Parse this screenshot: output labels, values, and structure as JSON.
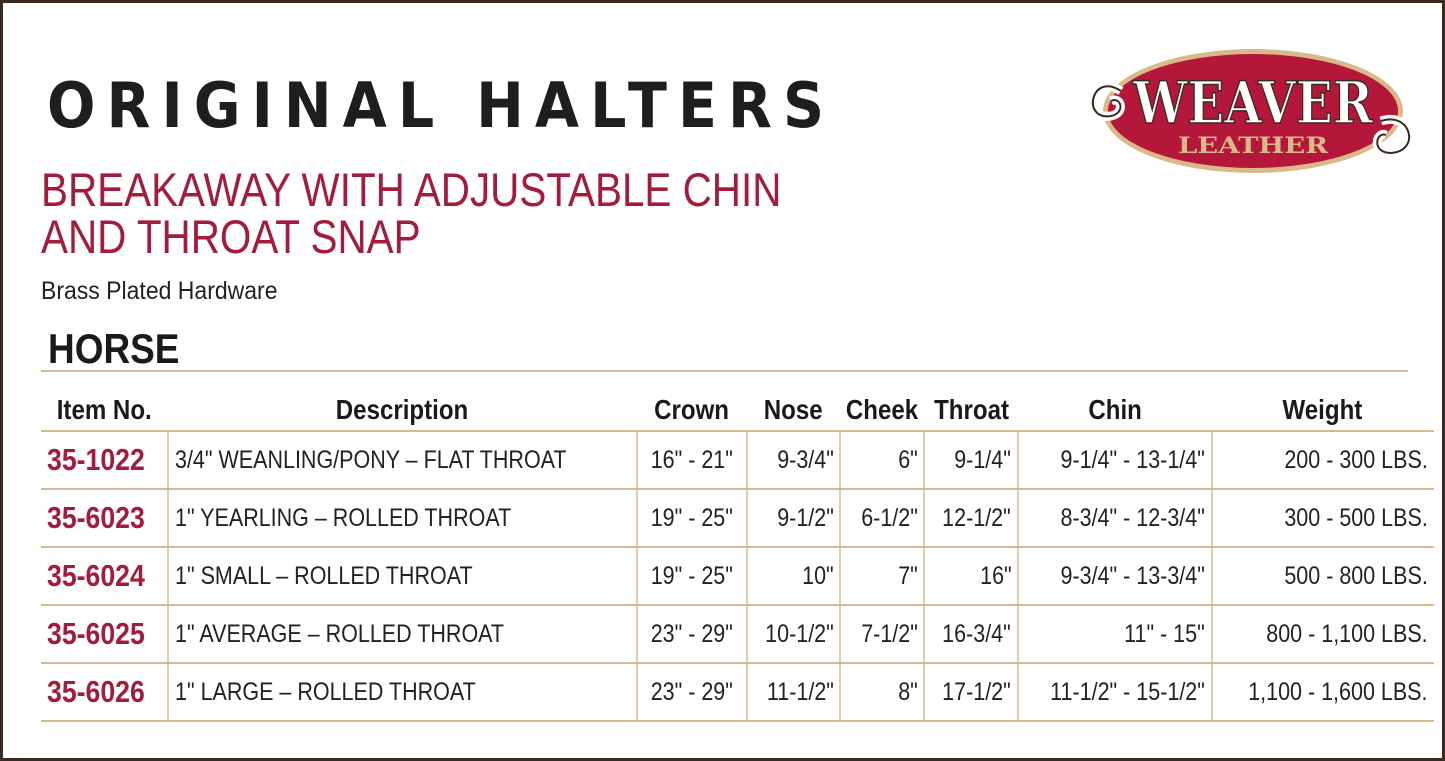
{
  "header": {
    "title": "ORIGINAL HALTERS",
    "subtitle_line1": "BREAKAWAY WITH ADJUSTABLE CHIN",
    "subtitle_line2": "AND THROAT SNAP",
    "hardware": "Brass Plated Hardware",
    "section": "HORSE"
  },
  "logo": {
    "word": "WEAVER",
    "sub": "LEATHER",
    "colors": {
      "red": "#b5173a",
      "tan": "#d9b98a"
    }
  },
  "colors": {
    "accent": "#a41c3c",
    "rule": "#d8b88e",
    "border": "#3b2a22"
  },
  "table": {
    "columns": [
      "Item No.",
      "Description",
      "Crown",
      "Nose",
      "Cheek",
      "Throat",
      "Chin",
      "Weight"
    ],
    "rows": [
      [
        "35-1022",
        "3/4\" WEANLING/PONY – FLAT THROAT",
        "16\" - 21\"",
        "9-3/4\"",
        "6\"",
        "9-1/4\"",
        "9-1/4\" - 13-1/4\"",
        "200 - 300 LBS."
      ],
      [
        "35-6023",
        "1\" YEARLING – ROLLED THROAT",
        "19\" - 25\"",
        "9-1/2\"",
        "6-1/2\"",
        "12-1/2\"",
        "8-3/4\" - 12-3/4\"",
        "300 - 500 LBS."
      ],
      [
        "35-6024",
        "1\" SMALL – ROLLED THROAT",
        "19\" - 25\"",
        "10\"",
        "7\"",
        "16\"",
        "9-3/4\" - 13-3/4\"",
        "500 - 800 LBS."
      ],
      [
        "35-6025",
        "1\" AVERAGE – ROLLED THROAT",
        "23\" - 29\"",
        "10-1/2\"",
        "7-1/2\"",
        "16-3/4\"",
        "11\" - 15\"",
        "800 - 1,100 LBS."
      ],
      [
        "35-6026",
        "1\" LARGE – ROLLED THROAT",
        "23\" - 29\"",
        "11-1/2\"",
        "8\"",
        "17-1/2\"",
        "11-1/2\" - 15-1/2\"",
        "1,100 - 1,600 LBS."
      ]
    ]
  }
}
